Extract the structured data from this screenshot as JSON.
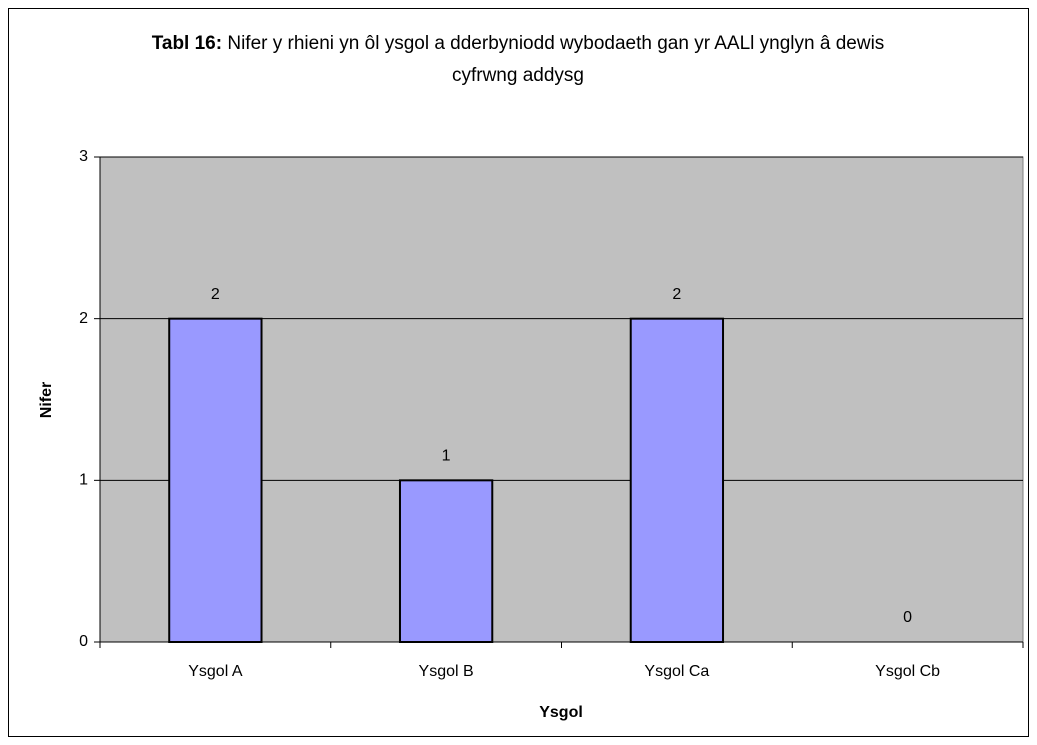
{
  "chart_data": {
    "type": "bar",
    "title_prefix": "Tabl 16:",
    "title": "Nifer y rhieni yn ôl ysgol a dderbyniodd wybodaeth gan yr AALl ynglyn â dewis cyfrwng addysg",
    "x_label": "Ysgol",
    "y_label": "Nifer",
    "categories": [
      "Ysgol A",
      "Ysgol B",
      "Ysgol Ca",
      "Ysgol Cb"
    ],
    "values": [
      2,
      1,
      2,
      0
    ],
    "color": "#9999ff",
    "ylim": [
      0,
      3
    ],
    "yticks": [
      0,
      1,
      2,
      3
    ],
    "grid": true
  }
}
